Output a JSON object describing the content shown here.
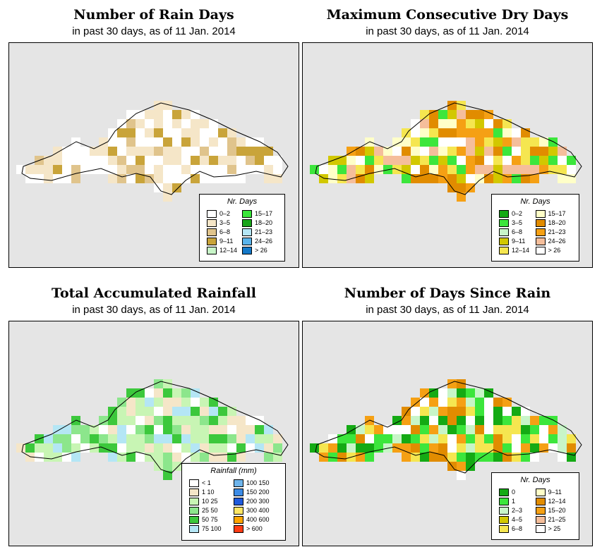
{
  "panels": [
    {
      "id": "rain-days",
      "title": "Number of Rain Days",
      "subtitle": "in past 30 days, as of  11 Jan. 2014",
      "legend": {
        "title": "Nr. Days",
        "items": [
          {
            "label": "0–2",
            "color": "#ffffff"
          },
          {
            "label": "3–5",
            "color": "#f5e6c8"
          },
          {
            "label": "6–8",
            "color": "#e0c48c"
          },
          {
            "label": "9–11",
            "color": "#c9a43a"
          },
          {
            "label": "12–14",
            "color": "#c8f5c8"
          },
          {
            "label": "15–17",
            "color": "#39e639"
          },
          {
            "label": "18–20",
            "color": "#1aa51a"
          },
          {
            "label": "21–23",
            "color": "#b4e6f5"
          },
          {
            "label": "24–26",
            "color": "#5ab4eb"
          },
          {
            "label": "> 26",
            "color": "#1478c8"
          }
        ]
      }
    },
    {
      "id": "max-dry",
      "title": "Maximum Consecutive Dry Days",
      "subtitle": "in past 30 days, as of  11 Jan. 2014",
      "legend": {
        "title": "Nr. Days",
        "items": [
          {
            "label": "0–2",
            "color": "#14aa14"
          },
          {
            "label": "3–5",
            "color": "#3ce63c"
          },
          {
            "label": "6–8",
            "color": "#c8f5c8"
          },
          {
            "label": "9–11",
            "color": "#d2c800"
          },
          {
            "label": "12–14",
            "color": "#f5e650"
          },
          {
            "label": "15–17",
            "color": "#ffffc8"
          },
          {
            "label": "18–20",
            "color": "#e18c00"
          },
          {
            "label": "21–23",
            "color": "#f5a014"
          },
          {
            "label": "24–26",
            "color": "#f5be9b"
          },
          {
            "label": "> 26",
            "color": "#ffffff"
          }
        ]
      }
    },
    {
      "id": "total-rainfall",
      "title": "Total Accumulated Rainfall",
      "subtitle": "in past 30 days, as of  11 Jan. 2014",
      "legend": {
        "title": "Rainfall (mm)",
        "items": [
          {
            "label": "< 1",
            "color": "#ffffff"
          },
          {
            "label": "1    10",
            "color": "#f5e6c8"
          },
          {
            "label": "10    25",
            "color": "#c8f5b4"
          },
          {
            "label": "25    50",
            "color": "#8ce68c"
          },
          {
            "label": "50    75",
            "color": "#3cc83c"
          },
          {
            "label": "75   100",
            "color": "#b4e6f5"
          },
          {
            "label": "100   150",
            "color": "#6eb4eb"
          },
          {
            "label": "150   200",
            "color": "#3c8ce6"
          },
          {
            "label": "200   300",
            "color": "#1e5adc"
          },
          {
            "label": "300   400",
            "color": "#ffe664"
          },
          {
            "label": "400   600",
            "color": "#ffa500"
          },
          {
            "label": "> 600",
            "color": "#ff3c14"
          }
        ]
      }
    },
    {
      "id": "days-since-rain",
      "title": "Number of Days Since Rain",
      "subtitle": "in past 30 days, as of  11 Jan. 2014",
      "legend": {
        "title": "Nr. Days",
        "items": [
          {
            "label": "0",
            "color": "#14aa14"
          },
          {
            "label": "1",
            "color": "#3ce63c"
          },
          {
            "label": "2–3",
            "color": "#c8f5c8"
          },
          {
            "label": "4–5",
            "color": "#d2c800"
          },
          {
            "label": "6–8",
            "color": "#f5e650"
          },
          {
            "label": "9–11",
            "color": "#ffffc8"
          },
          {
            "label": "12–14",
            "color": "#e18c00"
          },
          {
            "label": "15–20",
            "color": "#f5a014"
          },
          {
            "label": "21–25",
            "color": "#f5be9b"
          },
          {
            "label": "> 25",
            "color": "#ffffff"
          }
        ]
      }
    }
  ]
}
